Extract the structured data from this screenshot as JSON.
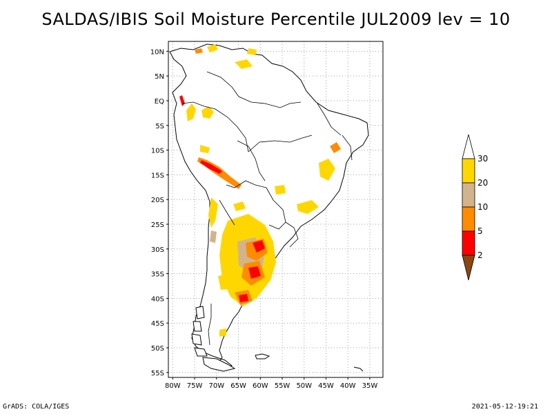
{
  "title": "SALDAS/IBIS Soil Moisture Percentile JUL2009 lev = 10",
  "footer": {
    "left": "GrADS: COLA/IGES",
    "right": "2021-05-12-19:21"
  },
  "map": {
    "lat_labels": [
      "10N",
      "5N",
      "EQ",
      "5S",
      "10S",
      "15S",
      "20S",
      "25S",
      "30S",
      "35S",
      "40S",
      "45S",
      "50S",
      "55S"
    ],
    "lon_labels": [
      "80W",
      "75W",
      "70W",
      "65W",
      "60W",
      "55W",
      "50W",
      "45W",
      "40W",
      "35W"
    ],
    "lat_range": [
      -56,
      12
    ],
    "lon_range": [
      -81,
      -32
    ],
    "grid": "dotted"
  },
  "colorbar": {
    "levels": [
      "2",
      "5",
      "10",
      "20",
      "30"
    ],
    "colors": {
      "below_2": "#8b4513",
      "2_5": "#ff0000",
      "5_10": "#ff8c00",
      "10_20": "#d2b48c",
      "20_30": "#ffd700",
      "above_30": "#ffffff"
    }
  },
  "colors": {
    "coast": "#000000",
    "grid": "#a0a0a0"
  }
}
